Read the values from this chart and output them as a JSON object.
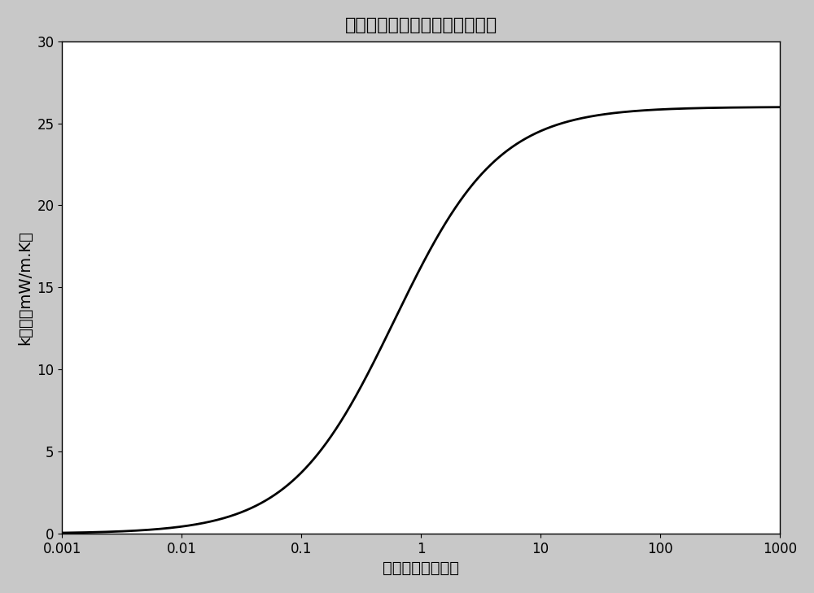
{
  "title": "空气填充泡沫中的气体热传导性",
  "xlabel": "孔隙大小（微米）",
  "ylabel": "k气体（mW/m.K）",
  "xlim_log": [
    -3,
    3
  ],
  "ylim": [
    0,
    30
  ],
  "k_bulk": 26.0,
  "effective_lambda": 0.3,
  "line_color": "#000000",
  "line_width": 2.0,
  "bg_color": "#c8c8c8",
  "plot_bg_color": "#ffffff",
  "title_fontsize": 16,
  "label_fontsize": 14,
  "tick_fontsize": 12,
  "figsize": [
    10.0,
    7.29
  ],
  "dpi": 100,
  "x_ticks": [
    0.001,
    0.01,
    0.1,
    1,
    10,
    100,
    1000
  ],
  "x_labels": [
    "0.001",
    "0.01",
    "0.1",
    "1",
    "10",
    "100",
    "1000"
  ],
  "y_ticks": [
    0,
    5,
    10,
    15,
    20,
    25,
    30
  ]
}
